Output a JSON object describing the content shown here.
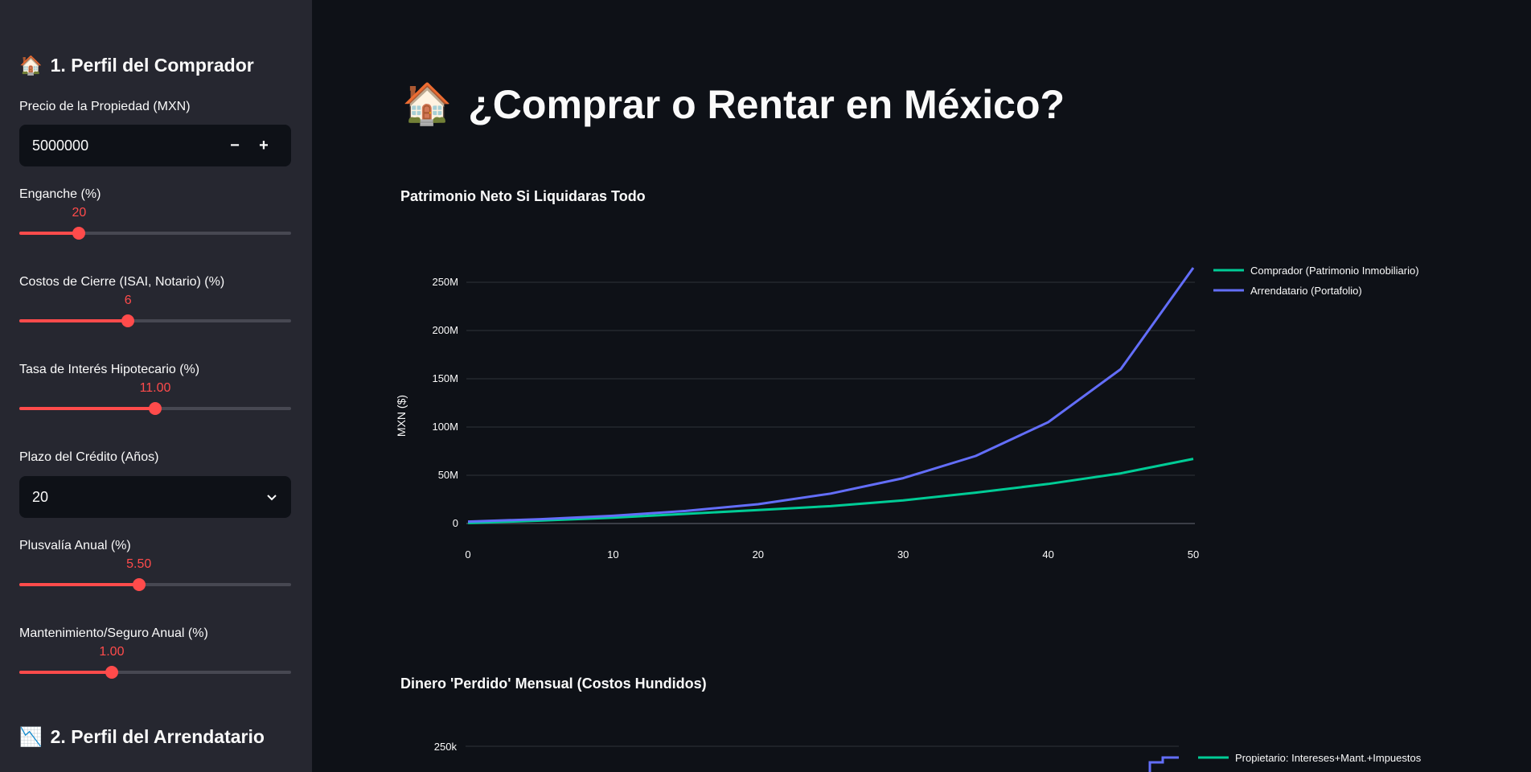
{
  "sidebar": {
    "section1_icon": "house-icon",
    "section1_title": "1. Perfil del Comprador",
    "price": {
      "label": "Precio de la Propiedad (MXN)",
      "value": "5000000",
      "minus": "−",
      "plus": "+"
    },
    "sliders": [
      {
        "label": "Enganche (%)",
        "value": "20",
        "fraction": 0.22
      },
      {
        "label": "Costos de Cierre (ISAI, Notario) (%)",
        "value": "6",
        "fraction": 0.4
      },
      {
        "label": "Tasa de Interés Hipotecario (%)",
        "value": "11.00",
        "fraction": 0.5
      },
      {
        "label": "Plusvalía Anual (%)",
        "value": "5.50",
        "fraction": 0.44
      },
      {
        "label": "Mantenimiento/Seguro Anual (%)",
        "value": "1.00",
        "fraction": 0.34
      }
    ],
    "term": {
      "label": "Plazo del Crédito (Años)",
      "value": "20"
    },
    "section2_icon": "chart-decreasing-icon",
    "section2_title": "2. Perfil del Arrendatario"
  },
  "main": {
    "title_icon": "house-icon",
    "title": "¿Comprar o Rentar en México?"
  },
  "chart_data": [
    {
      "type": "line",
      "title": "Patrimonio Neto Si Liquidaras Todo",
      "xlabel": "",
      "ylabel": "MXN ($)",
      "xlim": [
        0,
        50
      ],
      "ylim": [
        0,
        270000000
      ],
      "grid": true,
      "legend": "top-right",
      "x_ticks": [
        "0",
        "10",
        "20",
        "30",
        "40",
        "50"
      ],
      "y_ticks": [
        "0",
        "50M",
        "100M",
        "150M",
        "200M",
        "250M"
      ],
      "x": [
        0,
        5,
        10,
        15,
        20,
        25,
        30,
        35,
        40,
        45,
        50
      ],
      "series": [
        {
          "name": "Comprador (Patrimonio Inmobiliario)",
          "color": "#00cc96",
          "values": [
            500000,
            3000000,
            6000000,
            10000000,
            14000000,
            18000000,
            24000000,
            32000000,
            41000000,
            52000000,
            67000000
          ]
        },
        {
          "name": "Arrendatario (Portafolio)",
          "color": "#636efa",
          "values": [
            2000000,
            4500000,
            8000000,
            13000000,
            20000000,
            31000000,
            47000000,
            70000000,
            105000000,
            160000000,
            265000000
          ]
        }
      ]
    },
    {
      "type": "line",
      "title": "Dinero 'Perdido' Mensual (Costos Hundidos)",
      "y_ticks": [
        "250k"
      ],
      "series": [
        {
          "name": "Propietario: Intereses+Mant.+Impuestos",
          "color": "#00cc96"
        }
      ]
    }
  ]
}
